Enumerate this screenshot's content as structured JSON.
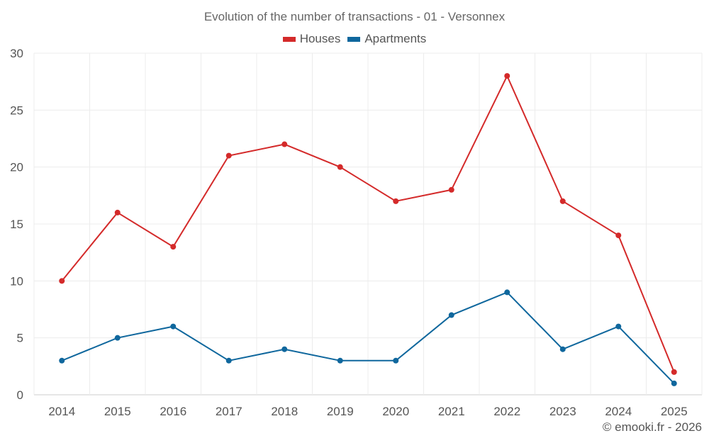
{
  "chart_data": {
    "type": "line",
    "title": "Evolution of the number of transactions - 01 - Versonnex",
    "xlabel": "",
    "ylabel": "",
    "categories": [
      "2014",
      "2015",
      "2016",
      "2017",
      "2018",
      "2019",
      "2020",
      "2021",
      "2022",
      "2023",
      "2024",
      "2025"
    ],
    "ylim": [
      0,
      30
    ],
    "yticks": [
      0,
      5,
      10,
      15,
      20,
      25,
      30
    ],
    "grid": true,
    "legend_position": "top-center",
    "series": [
      {
        "name": "Houses",
        "color": "#d42a2a",
        "values": [
          10,
          16,
          13,
          21,
          22,
          20,
          17,
          18,
          28,
          17,
          14,
          2
        ]
      },
      {
        "name": "Apartments",
        "color": "#0f679d",
        "values": [
          3,
          5,
          6,
          3,
          4,
          3,
          3,
          7,
          9,
          4,
          6,
          1
        ]
      }
    ]
  },
  "credit": "© emooki.fr - 2026"
}
